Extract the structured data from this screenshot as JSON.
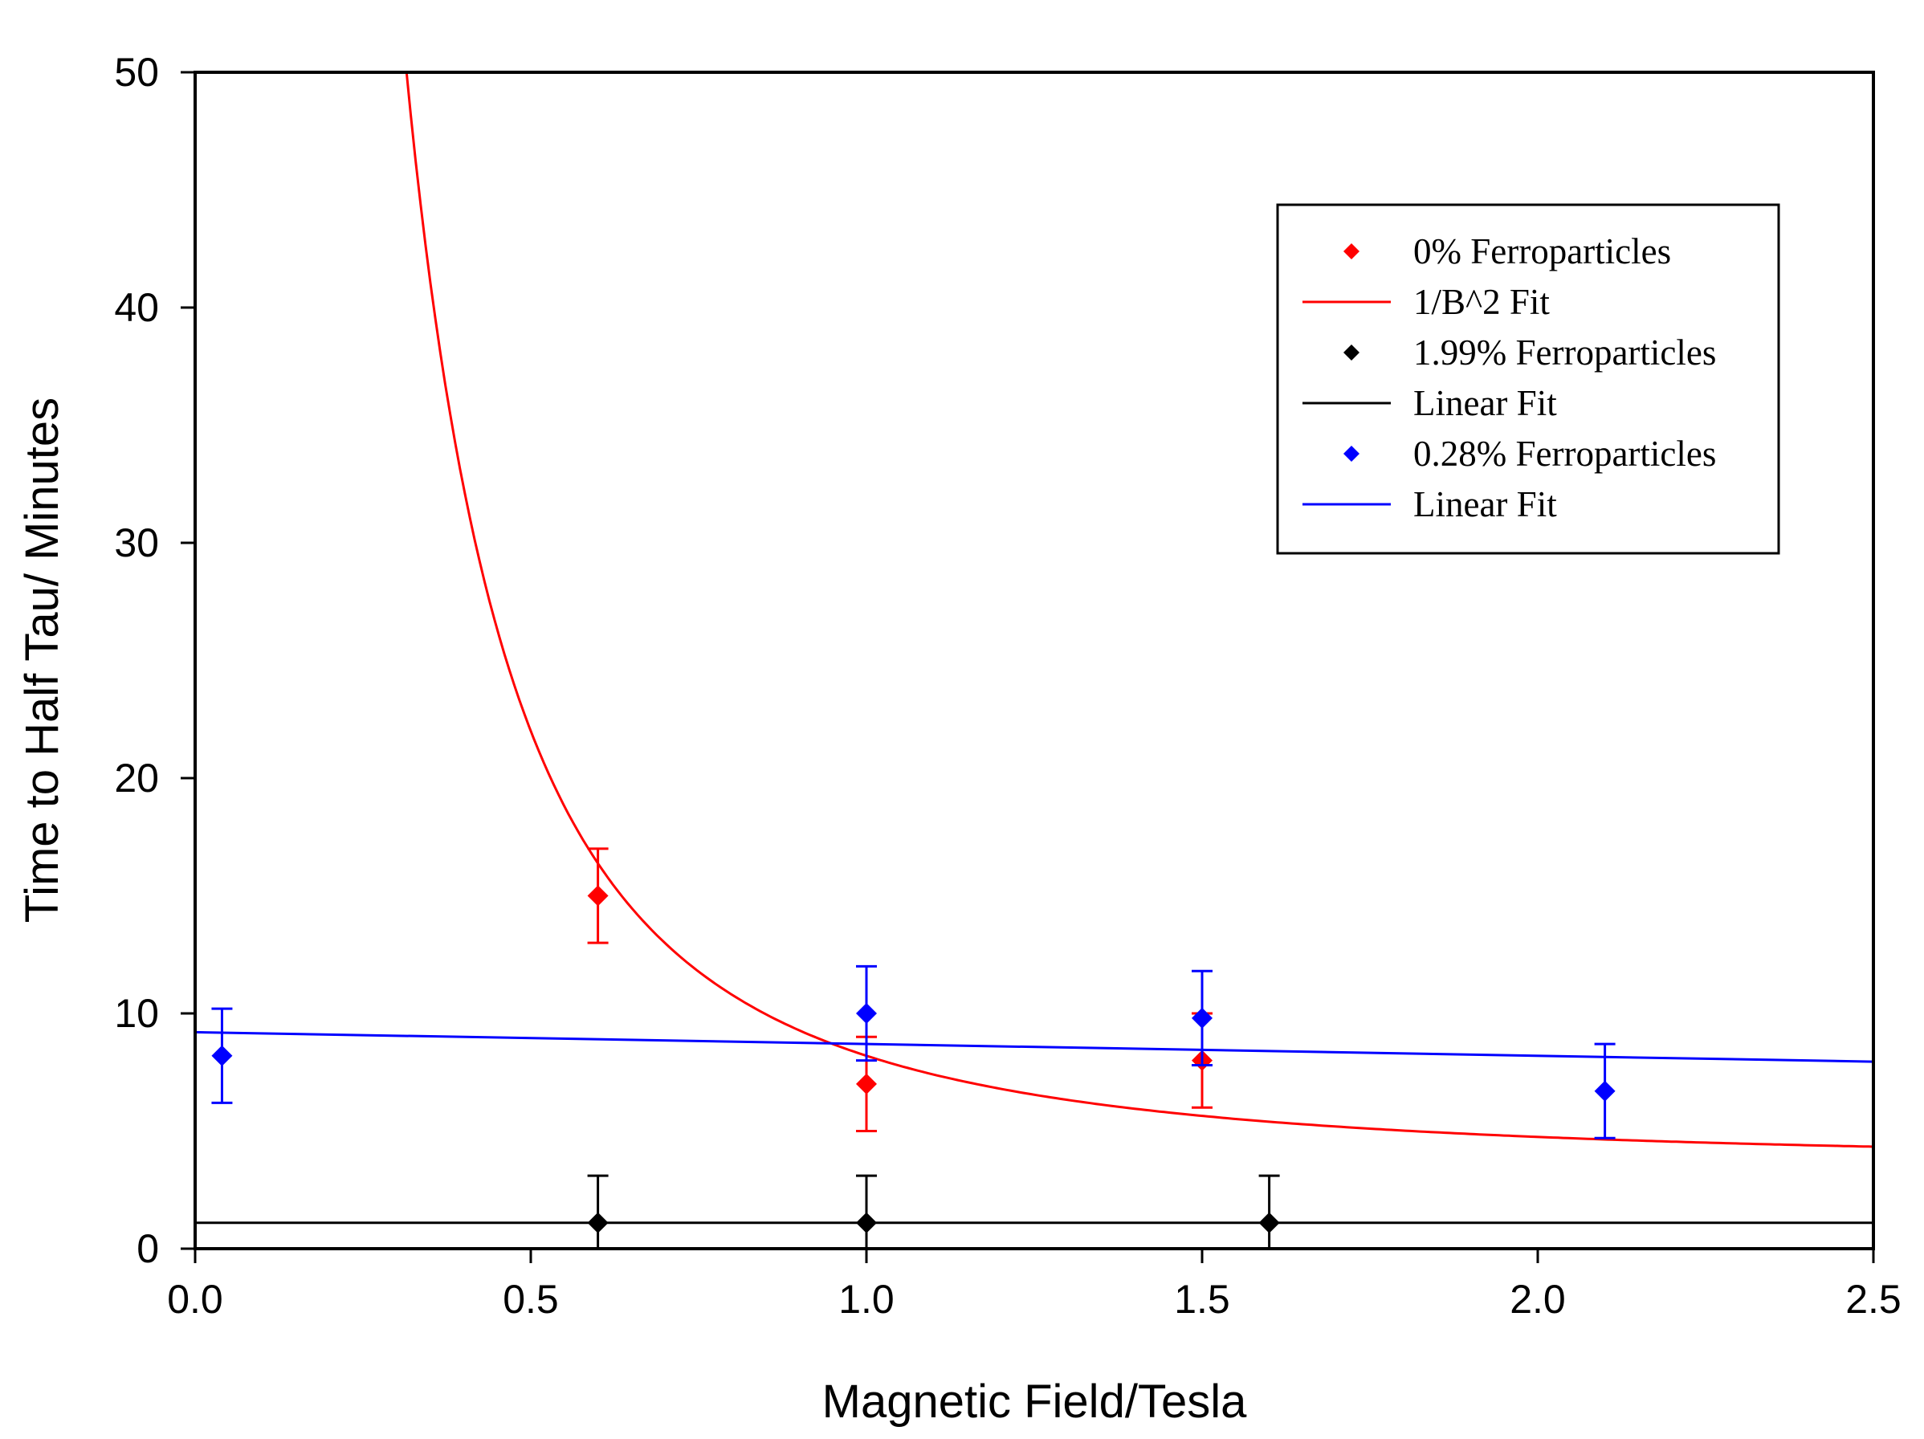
{
  "chart_data": {
    "type": "scatter",
    "title": "",
    "xlabel": "Magnetic Field/Tesla",
    "ylabel": "Time to Half Tau/ Minutes",
    "xlim": [
      0.0,
      2.5
    ],
    "ylim": [
      0,
      50
    ],
    "xticks": [
      0.0,
      0.5,
      1.0,
      1.5,
      2.0,
      2.5
    ],
    "xtick_labels": [
      "0.0",
      "0.5",
      "1.0",
      "1.5",
      "2.0",
      "2.5"
    ],
    "yticks": [
      0,
      10,
      20,
      30,
      40,
      50
    ],
    "ytick_labels": [
      "0",
      "10",
      "20",
      "30",
      "40",
      "50"
    ],
    "grid": false,
    "legend_position": "top-right",
    "series": [
      {
        "name": "0% Ferroparticles",
        "kind": "points",
        "color": "#ff0000",
        "x": [
          0.6,
          1.0,
          1.5
        ],
        "y": [
          15.0,
          7.0,
          8.0
        ],
        "yerr": [
          2.0,
          2.0,
          2.0
        ]
      },
      {
        "name": "1/B^2 Fit",
        "kind": "fit",
        "fit": "inverse_square",
        "color": "#ff0000",
        "k": 4.6,
        "c": 3.6
      },
      {
        "name": "1.99% Ferroparticles",
        "kind": "points",
        "color": "#000000",
        "x": [
          0.6,
          1.0,
          1.6
        ],
        "y": [
          1.1,
          1.1,
          1.1
        ],
        "yerr": [
          2.0,
          2.0,
          2.0
        ]
      },
      {
        "name": "Linear Fit",
        "kind": "fit",
        "fit": "linear",
        "color": "#000000",
        "intercept": 1.1,
        "slope": 0.0
      },
      {
        "name": "0.28% Ferroparticles",
        "kind": "points",
        "color": "#0000ff",
        "x": [
          0.04,
          1.0,
          1.5,
          2.1
        ],
        "y": [
          8.2,
          10.0,
          9.8,
          6.7
        ],
        "yerr": [
          2.0,
          2.0,
          2.0,
          2.0
        ]
      },
      {
        "name": "Linear Fit",
        "kind": "fit",
        "fit": "linear",
        "color": "#0000ff",
        "intercept": 9.2,
        "slope": -0.5
      }
    ]
  }
}
